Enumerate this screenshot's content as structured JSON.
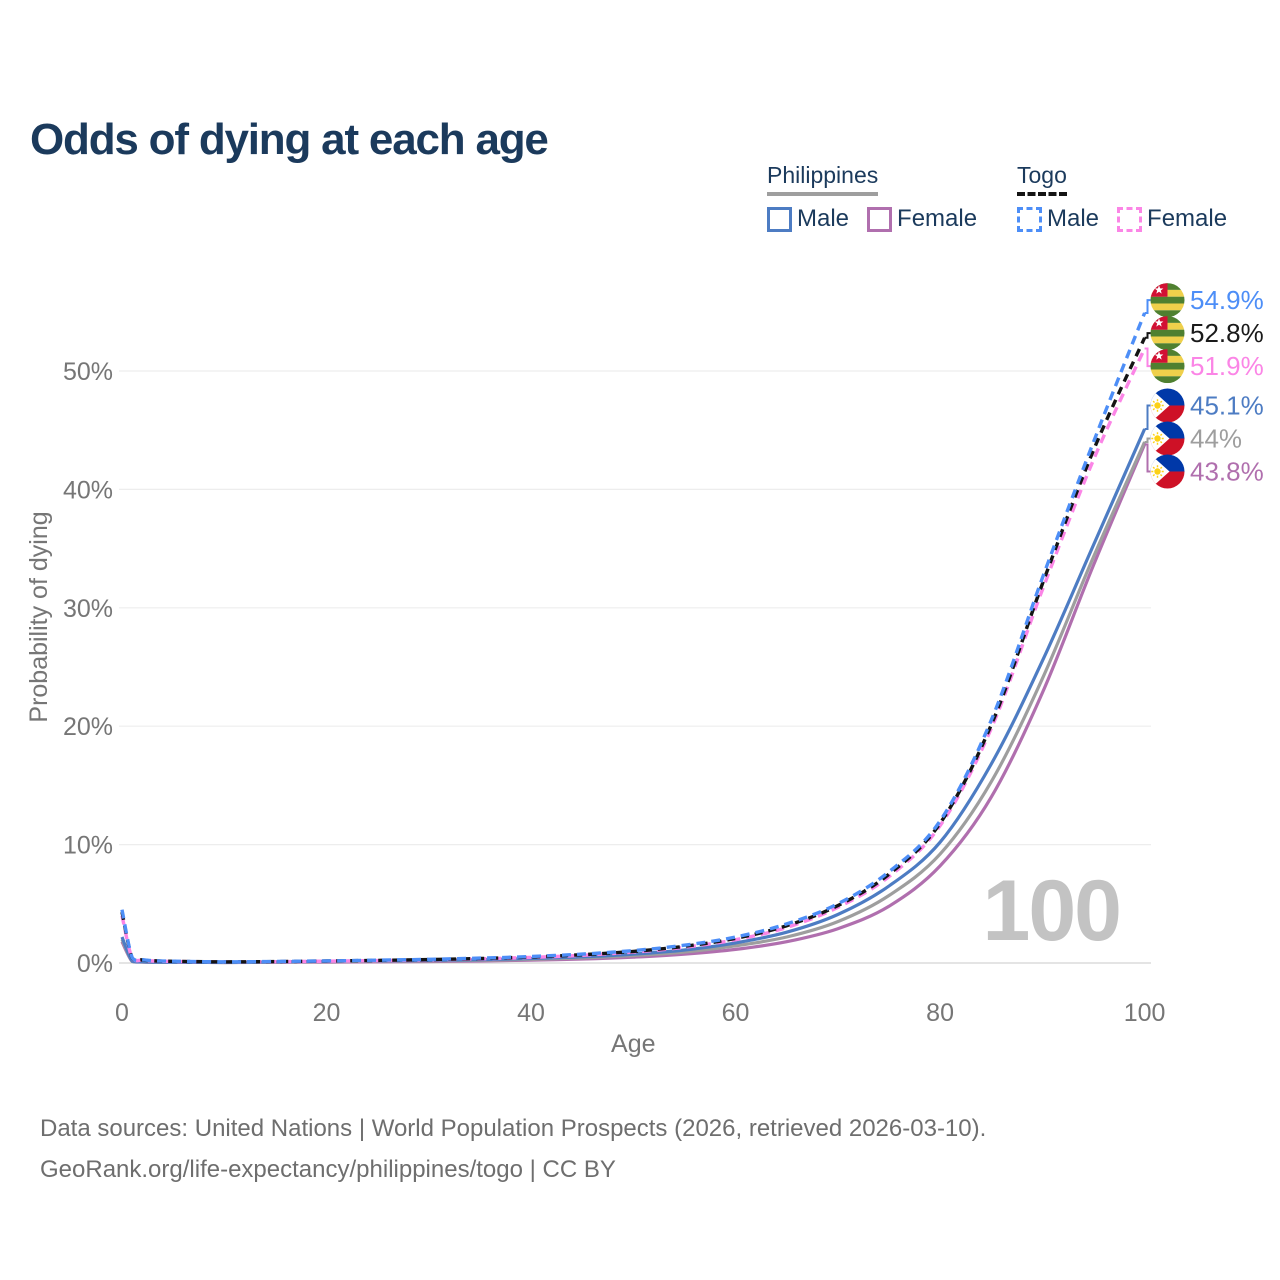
{
  "title": "Odds of dying at each age",
  "legend": {
    "groups": [
      {
        "label": "Philippines",
        "line_style": "solid",
        "underline_color": "#9e9e9e",
        "items": [
          {
            "label": "Male",
            "color": "#4d7cc3"
          },
          {
            "label": "Female",
            "color": "#b06fae"
          }
        ]
      },
      {
        "label": "Togo",
        "line_style": "dashed",
        "underline_color": "#141414",
        "items": [
          {
            "label": "Male",
            "color": "#4d8ef7"
          },
          {
            "label": "Female",
            "color": "#fb85e6"
          }
        ]
      }
    ]
  },
  "watermark": "100",
  "footer": {
    "line1": "Data sources: United Nations | World Population Prospects (2026, retrieved 2026-03-10).",
    "line2": "GeoRank.org/life-expectancy/philippines/togo | CC BY"
  },
  "chart_data": {
    "type": "line",
    "title": "Odds of dying at each age",
    "xlabel": "Age",
    "ylabel": "Probability of dying",
    "x_ticks": [
      0,
      20,
      40,
      60,
      80,
      100
    ],
    "y_ticks": [
      "0%",
      "10%",
      "20%",
      "30%",
      "40%",
      "50%"
    ],
    "xlim": [
      0,
      100
    ],
    "ylim": [
      0,
      57
    ],
    "grid": "horizontal",
    "legend_position": "top-right",
    "ages": [
      0,
      1,
      2,
      3,
      5,
      10,
      15,
      20,
      25,
      30,
      35,
      40,
      45,
      50,
      55,
      60,
      65,
      70,
      75,
      80,
      85,
      90,
      95,
      100
    ],
    "series": [
      {
        "name": "Togo Male",
        "country": "Togo",
        "sex": "Male",
        "flag": "togo",
        "color": "#4d8ef7",
        "dash": true,
        "end_label": "54.9%",
        "values": [
          4.5,
          0.45,
          0.28,
          0.2,
          0.15,
          0.1,
          0.13,
          0.18,
          0.24,
          0.31,
          0.41,
          0.55,
          0.75,
          1.05,
          1.5,
          2.2,
          3.3,
          5.0,
          7.7,
          12.0,
          20.5,
          32.5,
          44.0,
          54.9
        ]
      },
      {
        "name": "Togo Both sexes",
        "country": "Togo",
        "sex": "Both sexes",
        "flag": "togo",
        "color": "#141414",
        "dash": true,
        "end_label": "52.8%",
        "values": [
          4.3,
          0.42,
          0.26,
          0.19,
          0.14,
          0.095,
          0.12,
          0.17,
          0.22,
          0.29,
          0.38,
          0.51,
          0.7,
          0.98,
          1.41,
          2.08,
          3.15,
          4.85,
          7.5,
          11.8,
          20.1,
          32.0,
          43.3,
          52.8
        ]
      },
      {
        "name": "Togo Female",
        "country": "Togo",
        "sex": "Female",
        "flag": "togo",
        "color": "#fb85e6",
        "dash": true,
        "end_label": "51.9%",
        "values": [
          4.0,
          0.38,
          0.24,
          0.17,
          0.13,
          0.09,
          0.11,
          0.15,
          0.2,
          0.26,
          0.35,
          0.47,
          0.65,
          0.92,
          1.33,
          1.97,
          3.0,
          4.7,
          7.3,
          11.6,
          19.8,
          31.5,
          42.5,
          51.9
        ]
      },
      {
        "name": "Philippines Male",
        "country": "Philippines",
        "sex": "Male",
        "flag": "philippines",
        "color": "#4d7cc3",
        "dash": false,
        "end_label": "45.1%",
        "values": [
          2.2,
          0.16,
          0.1,
          0.08,
          0.06,
          0.05,
          0.09,
          0.15,
          0.19,
          0.22,
          0.28,
          0.38,
          0.52,
          0.75,
          1.1,
          1.7,
          2.6,
          4.1,
          6.5,
          10.2,
          16.8,
          25.5,
          35.3,
          45.1
        ]
      },
      {
        "name": "Philippines Both sexes",
        "country": "Philippines",
        "sex": "Both sexes",
        "flag": "philippines",
        "color": "#9e9e9e",
        "dash": false,
        "end_label": "44%",
        "values": [
          2.0,
          0.14,
          0.09,
          0.07,
          0.055,
          0.045,
          0.075,
          0.12,
          0.15,
          0.18,
          0.23,
          0.31,
          0.43,
          0.63,
          0.93,
          1.45,
          2.2,
          3.5,
          5.7,
          9.2,
          15.3,
          24.0,
          34.3,
          44.0
        ]
      },
      {
        "name": "Philippines Female",
        "country": "Philippines",
        "sex": "Female",
        "flag": "philippines",
        "color": "#b06fae",
        "dash": false,
        "end_label": "43.8%",
        "values": [
          1.8,
          0.13,
          0.08,
          0.06,
          0.05,
          0.04,
          0.06,
          0.08,
          0.1,
          0.13,
          0.17,
          0.24,
          0.34,
          0.5,
          0.75,
          1.15,
          1.8,
          2.9,
          4.8,
          8.2,
          14.0,
          22.8,
          33.6,
          43.8
        ]
      }
    ]
  }
}
